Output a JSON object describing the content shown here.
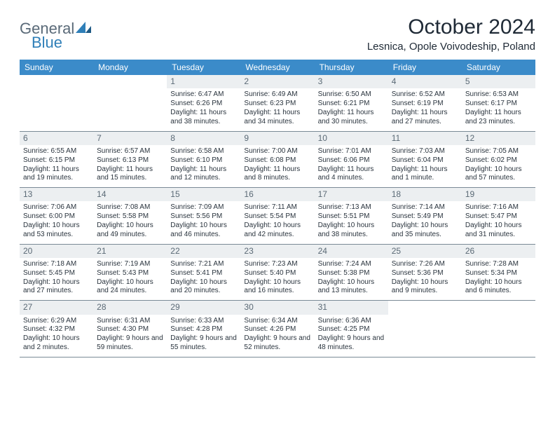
{
  "logo": {
    "text_gray": "General",
    "text_blue": "Blue"
  },
  "title": "October 2024",
  "location": "Lesnica, Opole Voivodeship, Poland",
  "style": {
    "header_bg": "#3b8bc9",
    "header_color": "#ffffff",
    "daynum_bg": "#eceff1",
    "daynum_color": "#5b6a76",
    "body_color": "#2a343e",
    "border_color": "#7a8a96",
    "logo_gray": "#5a6a78",
    "logo_blue": "#2f7fb8",
    "title_font_size": 30,
    "location_font_size": 15,
    "weekday_font_size": 12,
    "daynum_font_size": 12,
    "body_font_size": 10
  },
  "weekdays": [
    "Sunday",
    "Monday",
    "Tuesday",
    "Wednesday",
    "Thursday",
    "Friday",
    "Saturday"
  ],
  "weeks": [
    [
      {
        "n": "",
        "sr": "",
        "ss": "",
        "dl": ""
      },
      {
        "n": "",
        "sr": "",
        "ss": "",
        "dl": ""
      },
      {
        "n": "1",
        "sr": "Sunrise: 6:47 AM",
        "ss": "Sunset: 6:26 PM",
        "dl": "Daylight: 11 hours and 38 minutes."
      },
      {
        "n": "2",
        "sr": "Sunrise: 6:49 AM",
        "ss": "Sunset: 6:23 PM",
        "dl": "Daylight: 11 hours and 34 minutes."
      },
      {
        "n": "3",
        "sr": "Sunrise: 6:50 AM",
        "ss": "Sunset: 6:21 PM",
        "dl": "Daylight: 11 hours and 30 minutes."
      },
      {
        "n": "4",
        "sr": "Sunrise: 6:52 AM",
        "ss": "Sunset: 6:19 PM",
        "dl": "Daylight: 11 hours and 27 minutes."
      },
      {
        "n": "5",
        "sr": "Sunrise: 6:53 AM",
        "ss": "Sunset: 6:17 PM",
        "dl": "Daylight: 11 hours and 23 minutes."
      }
    ],
    [
      {
        "n": "6",
        "sr": "Sunrise: 6:55 AM",
        "ss": "Sunset: 6:15 PM",
        "dl": "Daylight: 11 hours and 19 minutes."
      },
      {
        "n": "7",
        "sr": "Sunrise: 6:57 AM",
        "ss": "Sunset: 6:13 PM",
        "dl": "Daylight: 11 hours and 15 minutes."
      },
      {
        "n": "8",
        "sr": "Sunrise: 6:58 AM",
        "ss": "Sunset: 6:10 PM",
        "dl": "Daylight: 11 hours and 12 minutes."
      },
      {
        "n": "9",
        "sr": "Sunrise: 7:00 AM",
        "ss": "Sunset: 6:08 PM",
        "dl": "Daylight: 11 hours and 8 minutes."
      },
      {
        "n": "10",
        "sr": "Sunrise: 7:01 AM",
        "ss": "Sunset: 6:06 PM",
        "dl": "Daylight: 11 hours and 4 minutes."
      },
      {
        "n": "11",
        "sr": "Sunrise: 7:03 AM",
        "ss": "Sunset: 6:04 PM",
        "dl": "Daylight: 11 hours and 1 minute."
      },
      {
        "n": "12",
        "sr": "Sunrise: 7:05 AM",
        "ss": "Sunset: 6:02 PM",
        "dl": "Daylight: 10 hours and 57 minutes."
      }
    ],
    [
      {
        "n": "13",
        "sr": "Sunrise: 7:06 AM",
        "ss": "Sunset: 6:00 PM",
        "dl": "Daylight: 10 hours and 53 minutes."
      },
      {
        "n": "14",
        "sr": "Sunrise: 7:08 AM",
        "ss": "Sunset: 5:58 PM",
        "dl": "Daylight: 10 hours and 49 minutes."
      },
      {
        "n": "15",
        "sr": "Sunrise: 7:09 AM",
        "ss": "Sunset: 5:56 PM",
        "dl": "Daylight: 10 hours and 46 minutes."
      },
      {
        "n": "16",
        "sr": "Sunrise: 7:11 AM",
        "ss": "Sunset: 5:54 PM",
        "dl": "Daylight: 10 hours and 42 minutes."
      },
      {
        "n": "17",
        "sr": "Sunrise: 7:13 AM",
        "ss": "Sunset: 5:51 PM",
        "dl": "Daylight: 10 hours and 38 minutes."
      },
      {
        "n": "18",
        "sr": "Sunrise: 7:14 AM",
        "ss": "Sunset: 5:49 PM",
        "dl": "Daylight: 10 hours and 35 minutes."
      },
      {
        "n": "19",
        "sr": "Sunrise: 7:16 AM",
        "ss": "Sunset: 5:47 PM",
        "dl": "Daylight: 10 hours and 31 minutes."
      }
    ],
    [
      {
        "n": "20",
        "sr": "Sunrise: 7:18 AM",
        "ss": "Sunset: 5:45 PM",
        "dl": "Daylight: 10 hours and 27 minutes."
      },
      {
        "n": "21",
        "sr": "Sunrise: 7:19 AM",
        "ss": "Sunset: 5:43 PM",
        "dl": "Daylight: 10 hours and 24 minutes."
      },
      {
        "n": "22",
        "sr": "Sunrise: 7:21 AM",
        "ss": "Sunset: 5:41 PM",
        "dl": "Daylight: 10 hours and 20 minutes."
      },
      {
        "n": "23",
        "sr": "Sunrise: 7:23 AM",
        "ss": "Sunset: 5:40 PM",
        "dl": "Daylight: 10 hours and 16 minutes."
      },
      {
        "n": "24",
        "sr": "Sunrise: 7:24 AM",
        "ss": "Sunset: 5:38 PM",
        "dl": "Daylight: 10 hours and 13 minutes."
      },
      {
        "n": "25",
        "sr": "Sunrise: 7:26 AM",
        "ss": "Sunset: 5:36 PM",
        "dl": "Daylight: 10 hours and 9 minutes."
      },
      {
        "n": "26",
        "sr": "Sunrise: 7:28 AM",
        "ss": "Sunset: 5:34 PM",
        "dl": "Daylight: 10 hours and 6 minutes."
      }
    ],
    [
      {
        "n": "27",
        "sr": "Sunrise: 6:29 AM",
        "ss": "Sunset: 4:32 PM",
        "dl": "Daylight: 10 hours and 2 minutes."
      },
      {
        "n": "28",
        "sr": "Sunrise: 6:31 AM",
        "ss": "Sunset: 4:30 PM",
        "dl": "Daylight: 9 hours and 59 minutes."
      },
      {
        "n": "29",
        "sr": "Sunrise: 6:33 AM",
        "ss": "Sunset: 4:28 PM",
        "dl": "Daylight: 9 hours and 55 minutes."
      },
      {
        "n": "30",
        "sr": "Sunrise: 6:34 AM",
        "ss": "Sunset: 4:26 PM",
        "dl": "Daylight: 9 hours and 52 minutes."
      },
      {
        "n": "31",
        "sr": "Sunrise: 6:36 AM",
        "ss": "Sunset: 4:25 PM",
        "dl": "Daylight: 9 hours and 48 minutes."
      },
      {
        "n": "",
        "sr": "",
        "ss": "",
        "dl": ""
      },
      {
        "n": "",
        "sr": "",
        "ss": "",
        "dl": ""
      }
    ]
  ]
}
